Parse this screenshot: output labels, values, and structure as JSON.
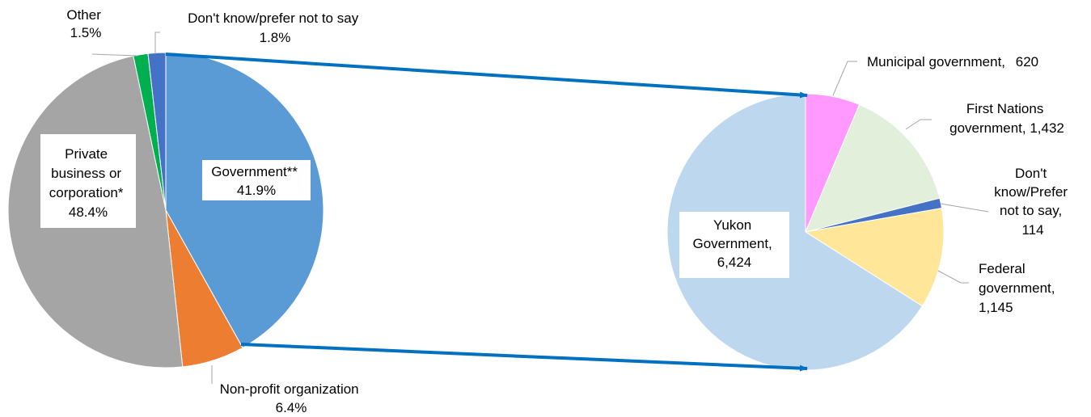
{
  "chart_data": [
    {
      "type": "pie",
      "title": "",
      "slices": [
        {
          "name": "Government**",
          "label": "Government**",
          "value_label": "41.9%",
          "value": 41.9,
          "color": "#5b9bd5"
        },
        {
          "name": "Non-profit organization",
          "label": "Non-profit organization",
          "value_label": "6.4%",
          "value": 6.4,
          "color": "#ed7d31"
        },
        {
          "name": "Private business or corporation*",
          "label": "Private business or corporation*",
          "value_label": "48.4%",
          "value": 48.4,
          "color": "#a5a5a5"
        },
        {
          "name": "Other",
          "label": "Other",
          "value_label": "1.5%",
          "value": 1.5,
          "color": "#00b050"
        },
        {
          "name": "Don't know/prefer not to say",
          "label": "Don't know/prefer not to say",
          "value_label": "1.8%",
          "value": 1.8,
          "color": "#4472c4"
        }
      ]
    },
    {
      "type": "pie",
      "title": "",
      "slices": [
        {
          "name": "Municipal government",
          "label": "Municipal government,",
          "value_label": "620",
          "value": 620,
          "color": "#ff99ff"
        },
        {
          "name": "First Nations government",
          "label": "First Nations government,",
          "value_label": "1,432",
          "value": 1432,
          "color": "#e2efda"
        },
        {
          "name": "Don't know/Prefer not to say",
          "label": "Don't know/Prefer not to say,",
          "value_label": "114",
          "value": 114,
          "color": "#4472c4"
        },
        {
          "name": "Federal government",
          "label": "Federal government,",
          "value_label": "1,145",
          "value": 1145,
          "color": "#ffe699"
        },
        {
          "name": "Yukon Government",
          "label": "Yukon Government,",
          "value_label": "6,424",
          "value": 6424,
          "color": "#bdd7ee"
        }
      ]
    }
  ],
  "connector_color": "#0070c0"
}
